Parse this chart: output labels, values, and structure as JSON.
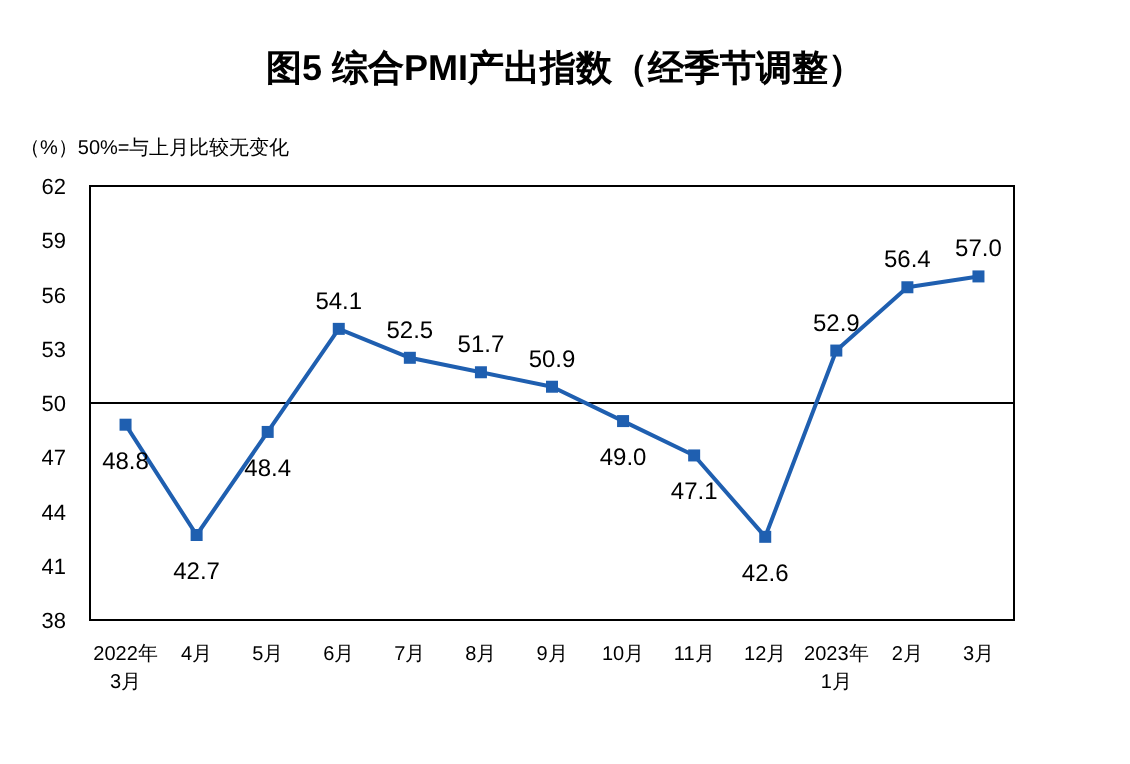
{
  "chart_data": {
    "type": "line",
    "title": "图5 综合PMI产出指数（经季节调整）",
    "subtitle": "（%）50%=与上月比较无变化",
    "categories": [
      "2022年\n3月",
      "4月",
      "5月",
      "6月",
      "7月",
      "8月",
      "9月",
      "10月",
      "11月",
      "12月",
      "2023年\n1月",
      "2月",
      "3月"
    ],
    "series": [
      {
        "color": "#1f5fb0",
        "values": [
          48.8,
          42.7,
          48.4,
          54.1,
          52.5,
          51.7,
          50.9,
          49.0,
          47.1,
          42.6,
          52.9,
          56.4,
          57.0
        ],
        "value_labels": [
          "48.8",
          "42.7",
          "48.4",
          "54.1",
          "52.5",
          "51.7",
          "50.9",
          "49.0",
          "47.1",
          "42.6",
          "52.9",
          "56.4",
          "57.0"
        ]
      }
    ],
    "ylim": [
      38,
      62
    ],
    "yticks": [
      38,
      41,
      44,
      47,
      50,
      53,
      56,
      59,
      62
    ],
    "ref_lines": [
      {
        "axis": "y",
        "value": 50,
        "color": "#000000"
      }
    ],
    "marker": "square",
    "line_style": "solid",
    "grid": false
  }
}
